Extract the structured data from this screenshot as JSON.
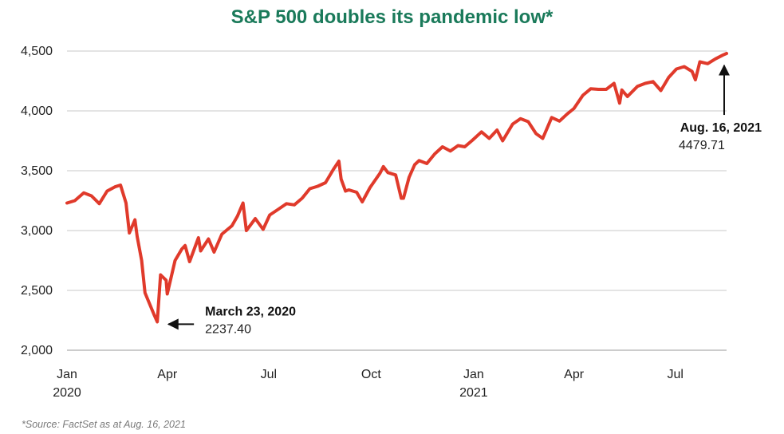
{
  "title": "S&P 500 doubles its pandemic low*",
  "source": "*Source: FactSet as at Aug. 16, 2021",
  "colors": {
    "title": "#1a7a5a",
    "line": "#e03a2b",
    "grid": "#c8c8c8"
  },
  "chart_data": {
    "type": "line",
    "title": "S&P 500 doubles its pandemic low*",
    "xlabel": "",
    "ylabel": "",
    "x_range": [
      "2020-01-02",
      "2021-08-16"
    ],
    "ylim": [
      2000,
      4500
    ],
    "grid": "horizontal",
    "legend": "none",
    "y_ticks": [
      {
        "value": 2000,
        "label": "2,000"
      },
      {
        "value": 2500,
        "label": "2,500"
      },
      {
        "value": 3000,
        "label": "3,000"
      },
      {
        "value": 3500,
        "label": "3,500"
      },
      {
        "value": 4000,
        "label": "4,000"
      },
      {
        "value": 4500,
        "label": "4,500"
      }
    ],
    "x_ticks": [
      {
        "date": "2020-01-02",
        "label": "Jan",
        "year": "2020"
      },
      {
        "date": "2020-04-01",
        "label": "Apr",
        "year": ""
      },
      {
        "date": "2020-07-01",
        "label": "Jul",
        "year": ""
      },
      {
        "date": "2020-10-01",
        "label": "Oct",
        "year": ""
      },
      {
        "date": "2021-01-01",
        "label": "Jan",
        "year": "2021"
      },
      {
        "date": "2021-04-01",
        "label": "Apr",
        "year": ""
      },
      {
        "date": "2021-07-01",
        "label": "Jul",
        "year": ""
      }
    ],
    "series": [
      {
        "color": "#e03a2b",
        "points": [
          [
            "2020-01-02",
            3230
          ],
          [
            "2020-01-09",
            3250
          ],
          [
            "2020-01-17",
            3315
          ],
          [
            "2020-01-24",
            3290
          ],
          [
            "2020-01-31",
            3225
          ],
          [
            "2020-02-07",
            3330
          ],
          [
            "2020-02-14",
            3365
          ],
          [
            "2020-02-19",
            3380
          ],
          [
            "2020-02-24",
            3230
          ],
          [
            "2020-02-27",
            2980
          ],
          [
            "2020-03-03",
            3090
          ],
          [
            "2020-03-05",
            2950
          ],
          [
            "2020-03-09",
            2750
          ],
          [
            "2020-03-12",
            2480
          ],
          [
            "2020-03-16",
            2390
          ],
          [
            "2020-03-20",
            2300
          ],
          [
            "2020-03-23",
            2237
          ],
          [
            "2020-03-26",
            2630
          ],
          [
            "2020-03-31",
            2585
          ],
          [
            "2020-04-01",
            2470
          ],
          [
            "2020-04-08",
            2750
          ],
          [
            "2020-04-14",
            2845
          ],
          [
            "2020-04-17",
            2875
          ],
          [
            "2020-04-21",
            2740
          ],
          [
            "2020-04-29",
            2940
          ],
          [
            "2020-05-01",
            2830
          ],
          [
            "2020-05-08",
            2930
          ],
          [
            "2020-05-13",
            2820
          ],
          [
            "2020-05-20",
            2970
          ],
          [
            "2020-05-29",
            3040
          ],
          [
            "2020-06-03",
            3120
          ],
          [
            "2020-06-08",
            3230
          ],
          [
            "2020-06-11",
            3000
          ],
          [
            "2020-06-19",
            3100
          ],
          [
            "2020-06-26",
            3010
          ],
          [
            "2020-07-02",
            3130
          ],
          [
            "2020-07-10",
            3180
          ],
          [
            "2020-07-17",
            3225
          ],
          [
            "2020-07-24",
            3215
          ],
          [
            "2020-07-31",
            3270
          ],
          [
            "2020-08-07",
            3350
          ],
          [
            "2020-08-14",
            3370
          ],
          [
            "2020-08-21",
            3400
          ],
          [
            "2020-08-28",
            3510
          ],
          [
            "2020-09-02",
            3580
          ],
          [
            "2020-09-04",
            3430
          ],
          [
            "2020-09-08",
            3330
          ],
          [
            "2020-09-11",
            3340
          ],
          [
            "2020-09-18",
            3320
          ],
          [
            "2020-09-23",
            3240
          ],
          [
            "2020-09-30",
            3360
          ],
          [
            "2020-10-09",
            3480
          ],
          [
            "2020-10-12",
            3535
          ],
          [
            "2020-10-16",
            3485
          ],
          [
            "2020-10-23",
            3465
          ],
          [
            "2020-10-28",
            3270
          ],
          [
            "2020-10-30",
            3270
          ],
          [
            "2020-11-04",
            3445
          ],
          [
            "2020-11-09",
            3550
          ],
          [
            "2020-11-13",
            3585
          ],
          [
            "2020-11-20",
            3560
          ],
          [
            "2020-11-27",
            3640
          ],
          [
            "2020-12-04",
            3700
          ],
          [
            "2020-12-11",
            3665
          ],
          [
            "2020-12-18",
            3710
          ],
          [
            "2020-12-24",
            3700
          ],
          [
            "2020-12-31",
            3756
          ],
          [
            "2021-01-08",
            3825
          ],
          [
            "2021-01-15",
            3770
          ],
          [
            "2021-01-22",
            3840
          ],
          [
            "2021-01-27",
            3750
          ],
          [
            "2021-02-05",
            3890
          ],
          [
            "2021-02-12",
            3935
          ],
          [
            "2021-02-19",
            3910
          ],
          [
            "2021-02-26",
            3810
          ],
          [
            "2021-03-04",
            3770
          ],
          [
            "2021-03-12",
            3945
          ],
          [
            "2021-03-19",
            3915
          ],
          [
            "2021-03-26",
            3975
          ],
          [
            "2021-04-01",
            4020
          ],
          [
            "2021-04-09",
            4130
          ],
          [
            "2021-04-16",
            4185
          ],
          [
            "2021-04-23",
            4180
          ],
          [
            "2021-04-30",
            4180
          ],
          [
            "2021-05-07",
            4230
          ],
          [
            "2021-05-12",
            4065
          ],
          [
            "2021-05-14",
            4175
          ],
          [
            "2021-05-19",
            4120
          ],
          [
            "2021-05-28",
            4205
          ],
          [
            "2021-06-04",
            4230
          ],
          [
            "2021-06-11",
            4245
          ],
          [
            "2021-06-18",
            4170
          ],
          [
            "2021-06-25",
            4280
          ],
          [
            "2021-07-02",
            4350
          ],
          [
            "2021-07-09",
            4370
          ],
          [
            "2021-07-16",
            4330
          ],
          [
            "2021-07-19",
            4260
          ],
          [
            "2021-07-23",
            4410
          ],
          [
            "2021-07-30",
            4395
          ],
          [
            "2021-08-06",
            4435
          ],
          [
            "2021-08-13",
            4468
          ],
          [
            "2021-08-16",
            4480
          ]
        ]
      }
    ],
    "annotations": [
      {
        "date": "2020-03-23",
        "value": 2237.4,
        "label": "March 23, 2020",
        "value_label": "2237.40",
        "arrow": "left"
      },
      {
        "date": "2021-08-16",
        "value": 4479.71,
        "label": "Aug. 16, 2021",
        "value_label": "4479.71",
        "arrow": "up"
      }
    ]
  }
}
